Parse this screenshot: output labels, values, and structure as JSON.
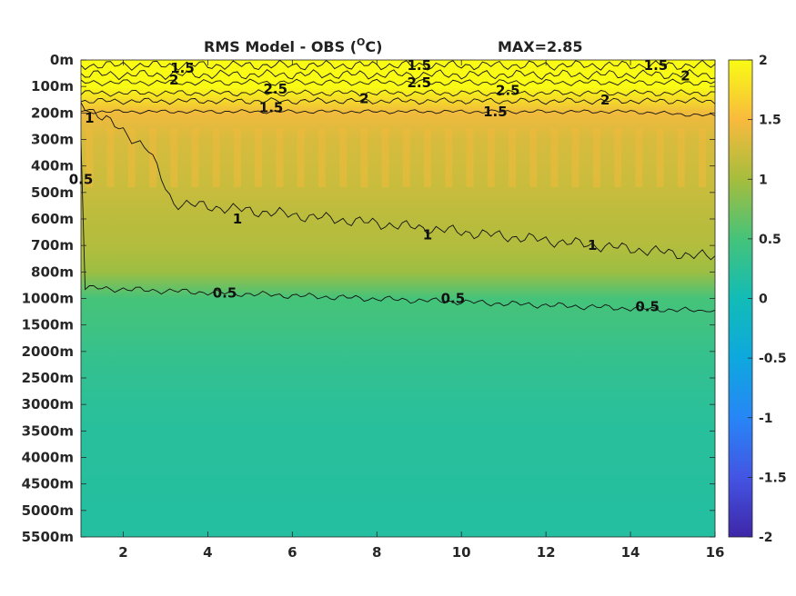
{
  "chart_data": {
    "type": "heatmap",
    "title": "RMS Model - OBS (",
    "title_unit": "O",
    "title_suffix": "C)",
    "max_label": "MAX=2.85",
    "x_ticks": [
      2,
      4,
      6,
      8,
      10,
      12,
      14,
      16
    ],
    "xlim": [
      1,
      16
    ],
    "depth_labels": [
      "0m",
      "100m",
      "200m",
      "300m",
      "400m",
      "500m",
      "600m",
      "700m",
      "800m",
      "1000m",
      "1500m",
      "2000m",
      "2500m",
      "3000m",
      "3500m",
      "4000m",
      "4500m",
      "5000m",
      "5500m"
    ],
    "colorbar": {
      "range": [
        -2,
        2
      ],
      "ticks": [
        "2",
        "1.5",
        "1",
        "0.5",
        "0",
        "-0.5",
        "-1",
        "-1.5",
        "-2"
      ],
      "colormap": "parula"
    },
    "profile_by_depth": [
      2.2,
      2.6,
      1.45,
      1.3,
      1.25,
      1.2,
      1.12,
      1.08,
      0.95,
      0.5,
      0.45,
      0.35,
      0.3,
      0.25,
      0.22,
      0.22,
      0.2,
      0.18,
      0.18
    ],
    "contour_levels": [
      0.5,
      1,
      1.5,
      2,
      2.5
    ],
    "contour_labels": [
      {
        "text": "1.5",
        "x": 3.4,
        "d": 0.3
      },
      {
        "text": "2",
        "x": 3.2,
        "d": 0.75
      },
      {
        "text": "2.5",
        "x": 5.6,
        "d": 1.1
      },
      {
        "text": "1.5",
        "x": 5.5,
        "d": 1.8
      },
      {
        "text": "2",
        "x": 7.7,
        "d": 1.45
      },
      {
        "text": "1.5",
        "x": 9.0,
        "d": 0.2
      },
      {
        "text": "2.5",
        "x": 9.0,
        "d": 0.85
      },
      {
        "text": "2.5",
        "x": 11.1,
        "d": 1.15
      },
      {
        "text": "1.5",
        "x": 10.8,
        "d": 1.95
      },
      {
        "text": "2",
        "x": 13.4,
        "d": 1.5
      },
      {
        "text": "1.5",
        "x": 14.6,
        "d": 0.2
      },
      {
        "text": "2",
        "x": 15.3,
        "d": 0.6
      },
      {
        "text": "1",
        "x": 1.2,
        "d": 2.2
      },
      {
        "text": "0.5",
        "x": 1.0,
        "d": 4.5
      },
      {
        "text": "1",
        "x": 4.7,
        "d": 6.0
      },
      {
        "text": "1",
        "x": 9.2,
        "d": 6.6
      },
      {
        "text": "1",
        "x": 13.1,
        "d": 7.0
      },
      {
        "text": "0.5",
        "x": 4.4,
        "d": 8.8
      },
      {
        "text": "0.5",
        "x": 9.8,
        "d": 9.0
      },
      {
        "text": "0.5",
        "x": 14.4,
        "d": 9.3
      }
    ]
  }
}
